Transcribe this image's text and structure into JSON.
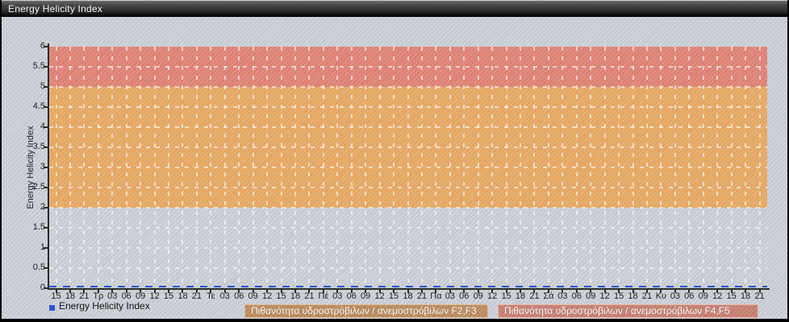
{
  "window": {
    "title": "Energy Helicity Index"
  },
  "legend": {
    "series_label": "Energy Helicity Index",
    "f23_label": "Πιθανότητα υδροστρόβιλων / ανεμοστρόβιλων F2,F3",
    "f45_label": "Πιθανότητα υδροστρόβιλων / ανεμοστρόβιλων F4,F5"
  },
  "colors": {
    "series_blue": "#2b56cc",
    "band_f23": "#e4a763",
    "band_f45": "#dd8173",
    "background": "#c7cbd3",
    "grid": "rgba(255,255,255,0.6)",
    "axis": "#2b2b2b",
    "legend_f23_bg": "#b9895c",
    "legend_f45_bg": "#c57d6f"
  },
  "chart_data": {
    "type": "line",
    "title": "Energy Helicity Index",
    "xlabel": "",
    "ylabel": "Energy Helicity Index",
    "ylim": [
      0,
      6
    ],
    "ytick_step": 0.5,
    "grid": true,
    "legend_position": "bottom",
    "x_tick_labels": [
      "15",
      "18",
      "21",
      "Τρ",
      "03",
      "06",
      "09",
      "12",
      "15",
      "18",
      "21",
      "Τε",
      "03",
      "06",
      "09",
      "12",
      "15",
      "18",
      "21",
      "Πέ",
      "03",
      "06",
      "09",
      "12",
      "15",
      "18",
      "21",
      "Πα",
      "03",
      "06",
      "09",
      "12",
      "15",
      "18",
      "21",
      "Σά",
      "03",
      "06",
      "09",
      "12",
      "15",
      "18",
      "21",
      "Κυ",
      "03",
      "06",
      "09",
      "12",
      "15",
      "18",
      "21"
    ],
    "series": [
      {
        "name": "Energy Helicity Index",
        "color": "#2b56cc",
        "style": "dashed",
        "values": [
          0,
          0,
          0,
          0,
          0,
          0,
          0,
          0,
          0,
          0,
          0,
          0,
          0,
          0,
          0,
          0,
          0,
          0,
          0,
          0,
          0,
          0,
          0,
          0,
          0,
          0,
          0,
          0,
          0,
          0,
          0,
          0,
          0,
          0,
          0,
          0,
          0,
          0,
          0,
          0,
          0,
          0,
          0,
          0,
          0,
          0,
          0,
          0,
          0,
          0,
          0
        ]
      }
    ],
    "bands": [
      {
        "id": "f2f3",
        "label": "Πιθανότητα υδροστρόβιλων / ανεμοστρόβιλων F2,F3",
        "from": 2,
        "to": 5,
        "color": "#e4a763"
      },
      {
        "id": "f4f5",
        "label": "Πιθανότητα υδροστρόβιλων / ανεμοστρόβιλων F4,F5",
        "from": 5,
        "to": 6,
        "color": "#dd8173"
      }
    ]
  }
}
